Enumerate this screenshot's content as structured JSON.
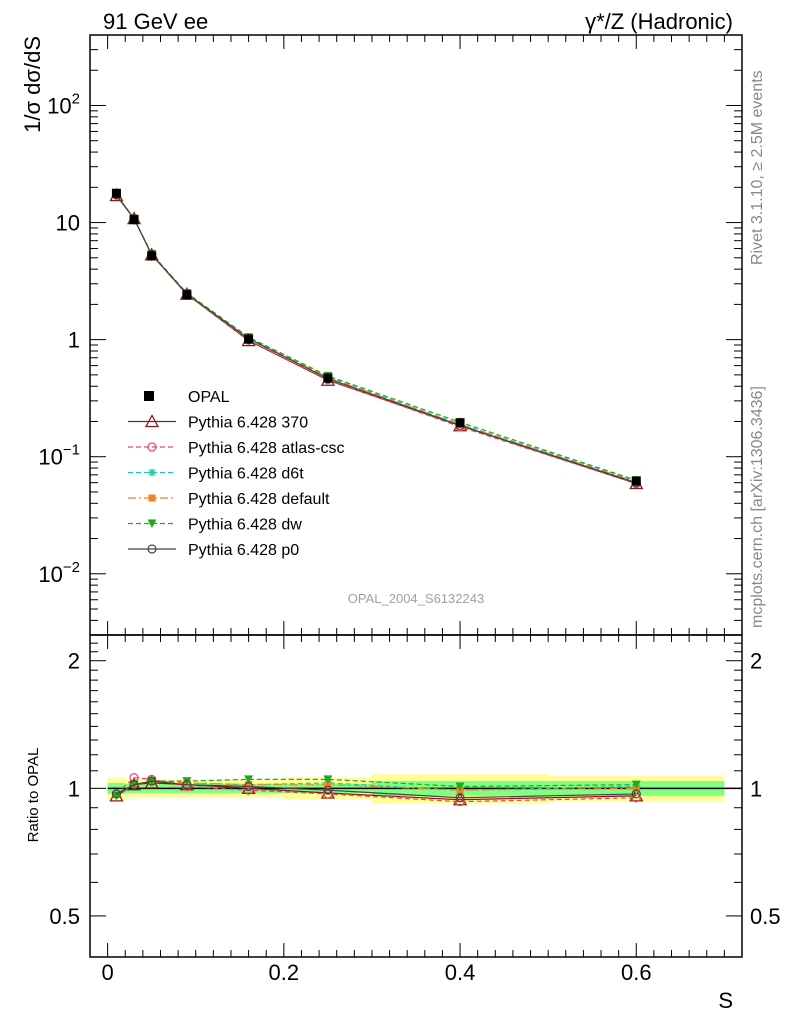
{
  "header": {
    "left_title": "91 GeV ee",
    "right_title": "γ*/Z (Hadronic)"
  },
  "side_labels": {
    "rivet": "Rivet 3.1.10, ≥ 2.5M events",
    "mcplots": "mcplots.cern.ch [arXiv:1306.3436]"
  },
  "analysis_label": "OPAL_2004_S6132243",
  "chart_data": [
    {
      "type": "line",
      "name_role": "main",
      "ylabel": "1/σ dσ/dS",
      "xlim": [
        -0.02,
        0.72
      ],
      "ylim": [
        0.003,
        400
      ],
      "yscale": "log",
      "grid": false,
      "legend_position": "middle-left",
      "y_tick_labels": [
        "10^-2",
        "10^-1",
        "1",
        "10",
        "10^2"
      ],
      "x": [
        0.01,
        0.03,
        0.05,
        0.09,
        0.16,
        0.25,
        0.4,
        0.6
      ],
      "data": {
        "name": "OPAL",
        "values": [
          17.8,
          10.6,
          5.2,
          2.42,
          1.01,
          0.47,
          0.195,
          0.062
        ]
      },
      "series": [
        {
          "name": "Pythia 6.428 370",
          "color": "#8b1a1a",
          "dash": "solid",
          "marker": "open-triangle",
          "values": [
            17.0,
            10.8,
            5.3,
            2.44,
            0.98,
            0.45,
            0.184,
            0.059
          ]
        },
        {
          "name": "Pythia 6.428 atlas-csc",
          "color": "#e8485f",
          "dash": "dashed",
          "marker": "open-circle",
          "values": [
            17.2,
            10.9,
            5.3,
            2.43,
            0.99,
            0.455,
            0.18,
            0.059
          ]
        },
        {
          "name": "Pythia 6.428 d6t",
          "color": "#20c9a6",
          "dash": "dashed",
          "marker": "asterisk",
          "values": [
            17.3,
            10.8,
            5.35,
            2.47,
            1.03,
            0.48,
            0.19,
            0.062
          ]
        },
        {
          "name": "Pythia 6.428 default",
          "color": "#f58025",
          "dash": "dashdot",
          "marker": "filled-square",
          "values": [
            17.3,
            10.8,
            5.3,
            2.46,
            1.02,
            0.475,
            0.188,
            0.061
          ]
        },
        {
          "name": "Pythia 6.428 dw",
          "color": "#1eaa1e",
          "dash": "dashed",
          "marker": "filled-triangle-down",
          "values": [
            17.1,
            10.8,
            5.4,
            2.5,
            1.05,
            0.49,
            0.197,
            0.063
          ]
        },
        {
          "name": "Pythia 6.428 p0",
          "color": "#444444",
          "dash": "solid",
          "marker": "open-circle",
          "values": [
            17.3,
            10.75,
            5.35,
            2.45,
            1.02,
            0.465,
            0.185,
            0.06
          ]
        }
      ]
    },
    {
      "type": "line",
      "name_role": "ratio",
      "ylabel": "Ratio to OPAL",
      "xlabel": "S",
      "xlim": [
        -0.02,
        0.72
      ],
      "ylim": [
        0.4,
        2.3
      ],
      "yscale": "log",
      "grid": false,
      "x_tick_labels": [
        "0",
        "0.2",
        "0.4",
        "0.6"
      ],
      "y_tick_labels": [
        "0.5",
        "1",
        "2"
      ],
      "bin_edges": [
        0.0,
        0.02,
        0.04,
        0.06,
        0.12,
        0.2,
        0.3,
        0.5,
        0.7
      ],
      "band_stat": [
        0.03,
        0.025,
        0.025,
        0.025,
        0.025,
        0.025,
        0.04,
        0.04
      ],
      "band_total": [
        0.06,
        0.05,
        0.05,
        0.05,
        0.05,
        0.06,
        0.08,
        0.07
      ],
      "reference": 1.0,
      "series": [
        {
          "name": "Pythia 6.428 370",
          "values": [
            0.96,
            1.02,
            1.03,
            1.02,
            1.0,
            0.975,
            0.94,
            0.96
          ]
        },
        {
          "name": "Pythia 6.428 atlas-csc",
          "values": [
            0.97,
            1.06,
            1.05,
            1.01,
            0.99,
            0.97,
            0.93,
            0.95
          ]
        },
        {
          "name": "Pythia 6.428 d6t",
          "values": [
            0.97,
            1.02,
            1.04,
            1.03,
            1.02,
            1.03,
            0.99,
            1.01
          ]
        },
        {
          "name": "Pythia 6.428 default",
          "values": [
            0.97,
            1.02,
            1.04,
            1.03,
            1.02,
            1.02,
            0.99,
            1.0
          ]
        },
        {
          "name": "Pythia 6.428 dw",
          "values": [
            0.96,
            1.02,
            1.04,
            1.04,
            1.05,
            1.05,
            1.01,
            1.02
          ]
        },
        {
          "name": "Pythia 6.428 p0",
          "values": [
            0.97,
            1.02,
            1.04,
            1.02,
            1.01,
            0.99,
            0.95,
            0.97
          ]
        }
      ]
    }
  ]
}
